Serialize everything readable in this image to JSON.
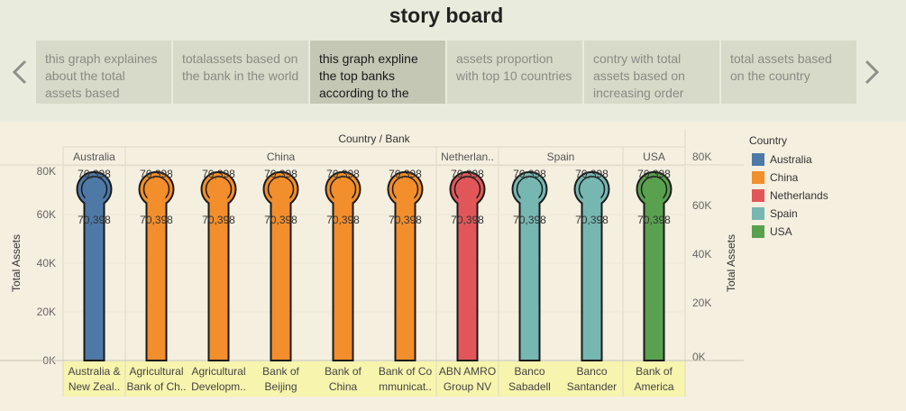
{
  "page": {
    "title": "story board"
  },
  "nav": {
    "prev_icon": "chevron-left-icon",
    "next_icon": "chevron-right-icon"
  },
  "story_points": [
    {
      "text": "this graph explaines about the total assets based",
      "active": false
    },
    {
      "text": "totalassets  based on the bank in the world",
      "active": false
    },
    {
      "text": "this graph expline the top banks according to the",
      "active": true
    },
    {
      "text": "assets proportion with top 10 countries",
      "active": false
    },
    {
      "text": "contry with total assets based on increasing order",
      "active": false
    },
    {
      "text": "total assets based on the country",
      "active": false
    }
  ],
  "legend": {
    "title": "Country",
    "items": [
      {
        "label": "Australia",
        "color": "#4e79a7"
      },
      {
        "label": "China",
        "color": "#f28e2b"
      },
      {
        "label": "Netherlands",
        "color": "#e15759"
      },
      {
        "label": "Spain",
        "color": "#76b7b2"
      },
      {
        "label": "USA",
        "color": "#59a14f"
      }
    ]
  },
  "chart_data": {
    "type": "bar",
    "header_title": "Country / Bank",
    "ylabel": "Total Assets",
    "ylim": [
      0,
      80000
    ],
    "yticks": [
      "0K",
      "20K",
      "40K",
      "60K",
      "80K"
    ],
    "y2ticks": [
      "0K",
      "20K",
      "40K",
      "60K",
      "80K"
    ],
    "y2lim": [
      0,
      80000
    ],
    "groups": [
      {
        "name": "Australia",
        "count": 1
      },
      {
        "name": "China",
        "count": 5
      },
      {
        "name": "Netherlan..",
        "count": 1
      },
      {
        "name": "Spain",
        "count": 2
      },
      {
        "name": "USA",
        "count": 1
      }
    ],
    "categories": [
      [
        "Australia &",
        "New Zeal.."
      ],
      [
        "Agricultural",
        "Bank of Ch.."
      ],
      [
        "Agricultural",
        "Developm.."
      ],
      [
        "Bank of",
        "Beijing"
      ],
      [
        "Bank of",
        "China"
      ],
      [
        "Bank of Co",
        "mmunicat.."
      ],
      [
        "ABN AMRO",
        "Group NV"
      ],
      [
        "Banco",
        "Sabadell"
      ],
      [
        "Banco",
        "Santander"
      ],
      [
        "Bank of",
        "America"
      ]
    ],
    "countries": [
      "Australia",
      "China",
      "China",
      "China",
      "China",
      "China",
      "Netherlands",
      "Spain",
      "Spain",
      "USA"
    ],
    "values": [
      70398,
      70398,
      70398,
      70398,
      70398,
      70398,
      70398,
      70398,
      70398,
      70398
    ],
    "value_labels": [
      "70,398",
      "70,398",
      "70,398",
      "70,398",
      "70,398",
      "70,398",
      "70,398",
      "70,398",
      "70,398",
      "70,398"
    ],
    "colors": {
      "Australia": "#4e79a7",
      "China": "#f28e2b",
      "Netherlands": "#e15759",
      "Spain": "#76b7b2",
      "USA": "#59a14f"
    }
  }
}
